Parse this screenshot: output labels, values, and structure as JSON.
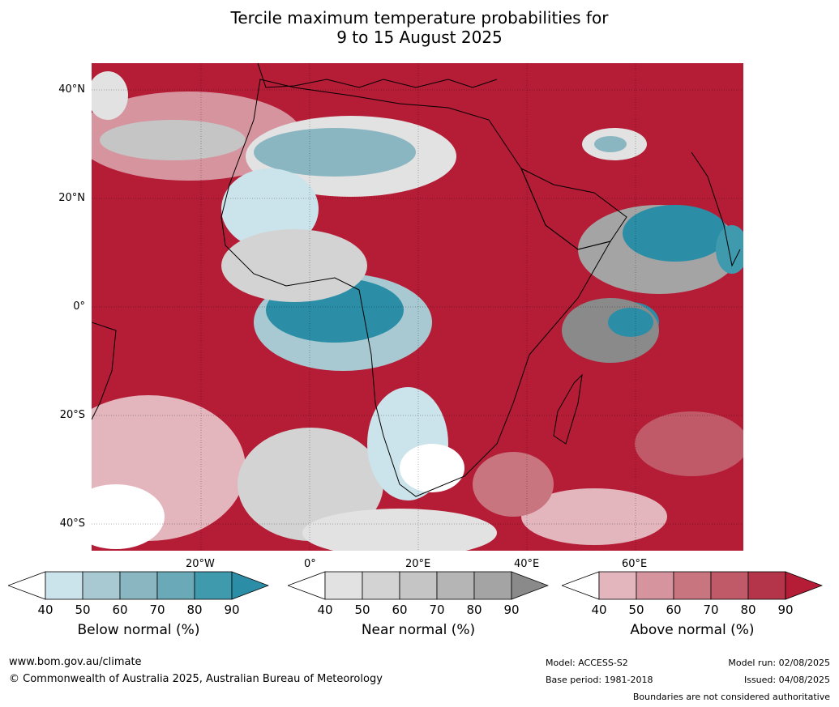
{
  "title_line1": "Tercile maximum temperature probabilities for",
  "title_line2": "9 to 15 August 2025",
  "map": {
    "lat_labels": [
      "40°N",
      "20°N",
      "0°",
      "20°S",
      "40°S"
    ],
    "lon_labels": [
      "20°W",
      "0°",
      "20°E",
      "40°E",
      "60°E"
    ]
  },
  "colors": {
    "below": [
      "#ffffff",
      "#cbe3ea",
      "#a8c9d1",
      "#8ab6c2",
      "#6aa9b7",
      "#409aad",
      "#2b8ea6"
    ],
    "near": [
      "#ffffff",
      "#e2e2e2",
      "#d3d3d3",
      "#c5c5c5",
      "#b5b5b5",
      "#a4a4a4",
      "#8a8a8a"
    ],
    "above": [
      "#ffffff",
      "#e3b6bd",
      "#d6949f",
      "#c87580",
      "#c05a68",
      "#b43449",
      "#b51c36"
    ]
  },
  "colorbars": [
    {
      "ticks": [
        "40",
        "50",
        "60",
        "70",
        "80",
        "90"
      ],
      "label": "Below normal (%)"
    },
    {
      "ticks": [
        "40",
        "50",
        "60",
        "70",
        "80",
        "90"
      ],
      "label": "Near normal (%)"
    },
    {
      "ticks": [
        "40",
        "50",
        "60",
        "70",
        "80",
        "90"
      ],
      "label": "Above normal (%)"
    }
  ],
  "footer": {
    "website": "www.bom.gov.au/climate",
    "copyright": "© Commonwealth of Australia 2025, Australian Bureau of Meteorology",
    "model": "Model: ACCESS-S2",
    "base_period": "Base period: 1981-2018",
    "model_run": "Model run: 02/08/2025",
    "issued": "Issued: 04/08/2025",
    "disclaimer": "Boundaries are not considered authoritative"
  }
}
